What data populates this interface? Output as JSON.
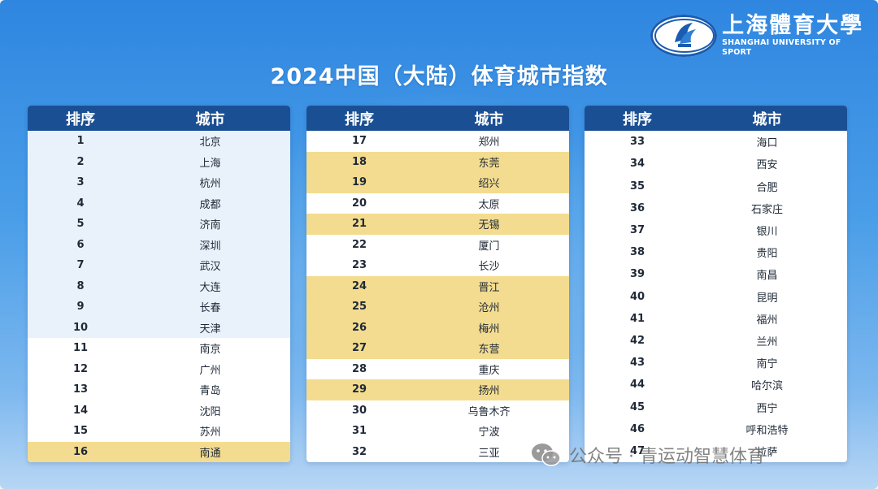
{
  "brand": {
    "name_cn": "上海體育大學",
    "name_en": "SHANGHAI UNIVERSITY OF SPORT"
  },
  "title": "2024中国（大陆）体育城市指数",
  "columns": {
    "rank": "排序",
    "city": "城市"
  },
  "colors": {
    "header": "#1b4f94",
    "gold_highlight": "#f3dc8f",
    "light_highlight": "#e9f1fb",
    "background_top": "#2f86e0"
  },
  "tables": [
    {
      "rows": [
        {
          "rank": "1",
          "city": "北京",
          "highlight": "light"
        },
        {
          "rank": "2",
          "city": "上海",
          "highlight": "light"
        },
        {
          "rank": "3",
          "city": "杭州",
          "highlight": "light"
        },
        {
          "rank": "4",
          "city": "成都",
          "highlight": "light"
        },
        {
          "rank": "5",
          "city": "济南",
          "highlight": "light"
        },
        {
          "rank": "6",
          "city": "深圳",
          "highlight": "light"
        },
        {
          "rank": "7",
          "city": "武汉",
          "highlight": "light"
        },
        {
          "rank": "8",
          "city": "大连",
          "highlight": "light"
        },
        {
          "rank": "9",
          "city": "长春",
          "highlight": "light"
        },
        {
          "rank": "10",
          "city": "天津",
          "highlight": "light"
        },
        {
          "rank": "11",
          "city": "南京",
          "highlight": "none"
        },
        {
          "rank": "12",
          "city": "广州",
          "highlight": "none"
        },
        {
          "rank": "13",
          "city": "青岛",
          "highlight": "none"
        },
        {
          "rank": "14",
          "city": "沈阳",
          "highlight": "none"
        },
        {
          "rank": "15",
          "city": "苏州",
          "highlight": "none"
        },
        {
          "rank": "16",
          "city": "南通",
          "highlight": "gold"
        }
      ]
    },
    {
      "rows": [
        {
          "rank": "17",
          "city": "郑州",
          "highlight": "none"
        },
        {
          "rank": "18",
          "city": "东莞",
          "highlight": "gold"
        },
        {
          "rank": "19",
          "city": "绍兴",
          "highlight": "gold"
        },
        {
          "rank": "20",
          "city": "太原",
          "highlight": "none"
        },
        {
          "rank": "21",
          "city": "无锡",
          "highlight": "gold"
        },
        {
          "rank": "22",
          "city": "厦门",
          "highlight": "none"
        },
        {
          "rank": "23",
          "city": "长沙",
          "highlight": "none"
        },
        {
          "rank": "24",
          "city": "晋江",
          "highlight": "gold"
        },
        {
          "rank": "25",
          "city": "沧州",
          "highlight": "gold"
        },
        {
          "rank": "26",
          "city": "梅州",
          "highlight": "gold"
        },
        {
          "rank": "27",
          "city": "东营",
          "highlight": "gold"
        },
        {
          "rank": "28",
          "city": "重庆",
          "highlight": "none"
        },
        {
          "rank": "29",
          "city": "扬州",
          "highlight": "gold"
        },
        {
          "rank": "30",
          "city": "乌鲁木齐",
          "highlight": "none"
        },
        {
          "rank": "31",
          "city": "宁波",
          "highlight": "none"
        },
        {
          "rank": "32",
          "city": "三亚",
          "highlight": "none"
        }
      ]
    },
    {
      "rows": [
        {
          "rank": "33",
          "city": "海口",
          "highlight": "none"
        },
        {
          "rank": "34",
          "city": "西安",
          "highlight": "none"
        },
        {
          "rank": "35",
          "city": "合肥",
          "highlight": "none"
        },
        {
          "rank": "36",
          "city": "石家庄",
          "highlight": "none"
        },
        {
          "rank": "37",
          "city": "银川",
          "highlight": "none"
        },
        {
          "rank": "38",
          "city": "贵阳",
          "highlight": "none"
        },
        {
          "rank": "39",
          "city": "南昌",
          "highlight": "none"
        },
        {
          "rank": "40",
          "city": "昆明",
          "highlight": "none"
        },
        {
          "rank": "41",
          "city": "福州",
          "highlight": "none"
        },
        {
          "rank": "42",
          "city": "兰州",
          "highlight": "none"
        },
        {
          "rank": "43",
          "city": "南宁",
          "highlight": "none"
        },
        {
          "rank": "44",
          "city": "哈尔滨",
          "highlight": "none"
        },
        {
          "rank": "45",
          "city": "西宁",
          "highlight": "none"
        },
        {
          "rank": "46",
          "city": "呼和浩特",
          "highlight": "none"
        },
        {
          "rank": "47",
          "city": "拉萨",
          "highlight": "none"
        }
      ]
    }
  ],
  "watermark": {
    "text": "公众号 · 青运动智慧体育",
    "icon": "wechat-icon"
  }
}
